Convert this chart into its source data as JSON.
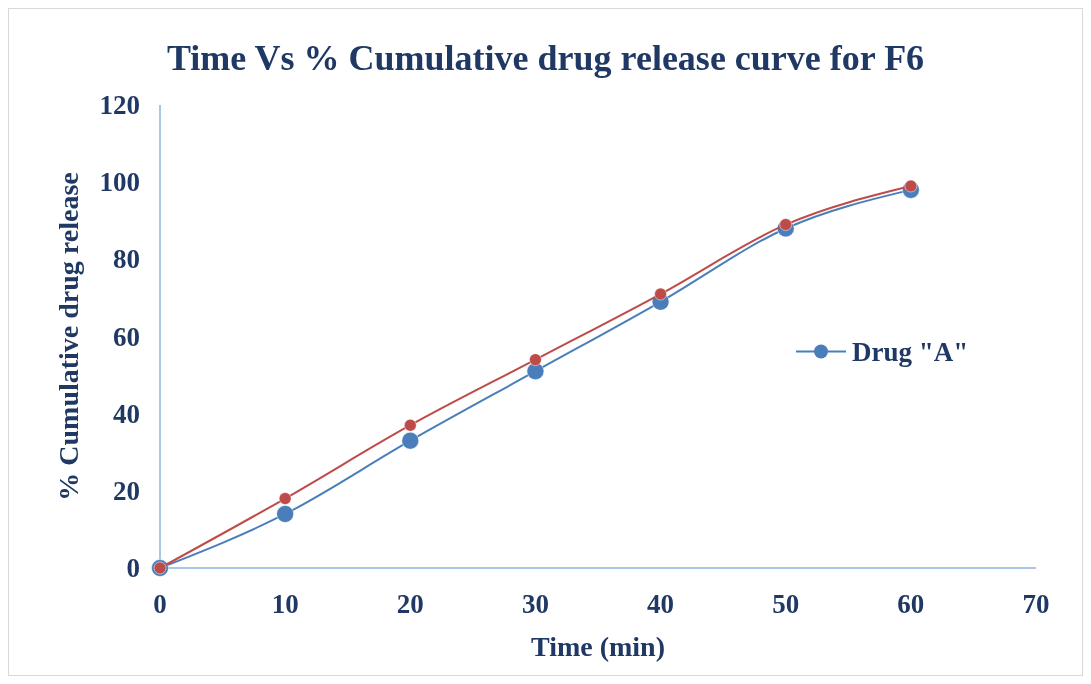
{
  "chart_data": {
    "type": "line",
    "title": "Time Vs % Cumulative drug release curve for F6",
    "xlabel": "Time (min)",
    "ylabel": "% Cumulative drug release",
    "x": [
      0,
      10,
      20,
      30,
      40,
      50,
      60
    ],
    "series": [
      {
        "name": "Drug \"A\"",
        "color": "#4a7ebb",
        "values": [
          0,
          14,
          33,
          51,
          69,
          88,
          98
        ]
      },
      {
        "color": "#be4b48",
        "values": [
          0,
          18,
          37,
          54,
          71,
          89,
          99
        ]
      }
    ],
    "xlim": [
      0,
      70
    ],
    "xticks": [
      0,
      10,
      20,
      30,
      40,
      50,
      60,
      70
    ],
    "ylim": [
      0,
      120
    ],
    "yticks": [
      0,
      20,
      40,
      60,
      80,
      100,
      120
    ],
    "grid": false,
    "legend": "right",
    "marker": "circle",
    "line_style": "solid"
  }
}
